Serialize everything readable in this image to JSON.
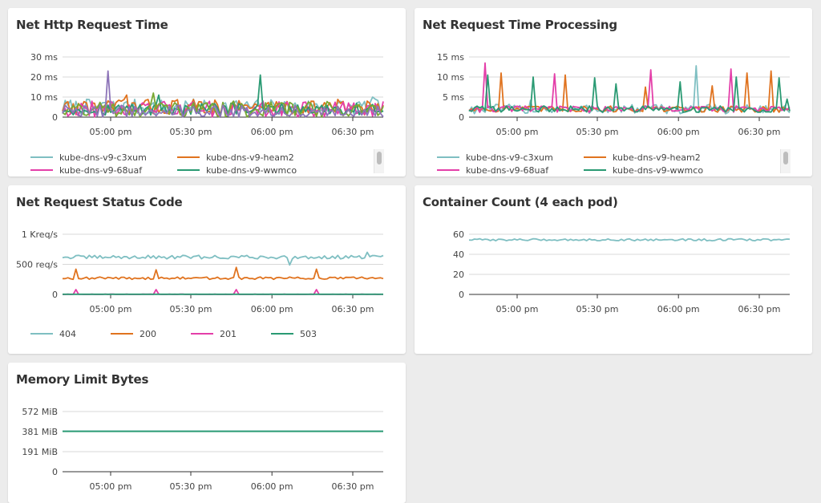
{
  "x_ticks": [
    "05:00 pm",
    "05:30 pm",
    "06:00 pm",
    "06:30 pm"
  ],
  "colors": {
    "teal": "#7fbfc2",
    "orange": "#e0731f",
    "pink": "#e43fa9",
    "green": "#2a9a73",
    "olive": "#79a832",
    "purple": "#8d74b8"
  },
  "panels": {
    "http": {
      "title": "Net Http Request Time",
      "legend": [
        {
          "label": "kube-dns-v9-c3xum",
          "color": "#7fbfc2"
        },
        {
          "label": "kube-dns-v9-heam2",
          "color": "#e0731f"
        },
        {
          "label": "kube-dns-v9-68uaf",
          "color": "#e43fa9"
        },
        {
          "label": "kube-dns-v9-wwmco",
          "color": "#2a9a73"
        }
      ]
    },
    "processing": {
      "title": "Net Request Time Processing",
      "legend": [
        {
          "label": "kube-dns-v9-c3xum",
          "color": "#7fbfc2"
        },
        {
          "label": "kube-dns-v9-heam2",
          "color": "#e0731f"
        },
        {
          "label": "kube-dns-v9-68uaf",
          "color": "#e43fa9"
        },
        {
          "label": "kube-dns-v9-wwmco",
          "color": "#2a9a73"
        }
      ]
    },
    "status": {
      "title": "Net Request Status Code",
      "legend": [
        {
          "label": "404",
          "color": "#7fbfc2"
        },
        {
          "label": "200",
          "color": "#e0731f"
        },
        {
          "label": "201",
          "color": "#e43fa9"
        },
        {
          "label": "503",
          "color": "#2a9a73"
        }
      ]
    },
    "containers": {
      "title": "Container Count (4 each pod)"
    },
    "memory": {
      "title": "Memory Limit Bytes"
    }
  },
  "chart_data": [
    {
      "type": "line",
      "title": "Net Http Request Time",
      "x": [
        "04:45 pm",
        "06:40 pm"
      ],
      "x_ticks": [
        "05:00 pm",
        "05:30 pm",
        "06:00 pm",
        "06:30 pm"
      ],
      "y_ticks": [
        "0",
        "10 ms",
        "20 ms",
        "30 ms"
      ],
      "ylim": [
        0,
        30
      ],
      "grid": true,
      "legend_position": "bottom",
      "series": [
        {
          "name": "kube-dns-v9-c3xum",
          "color": "#7fbfc2",
          "base": 5,
          "jitter": 4,
          "spikes": [
            [
              0.97,
              10
            ]
          ]
        },
        {
          "name": "kube-dns-v9-heam2",
          "color": "#e0731f",
          "base": 5,
          "jitter": 4,
          "spikes": [
            [
              0.2,
              11
            ]
          ]
        },
        {
          "name": "kube-dns-v9-68uaf",
          "color": "#e43fa9",
          "base": 4,
          "jitter": 4,
          "spikes": []
        },
        {
          "name": "kube-dns-v9-wwmco",
          "color": "#2a9a73",
          "base": 4,
          "jitter": 3,
          "spikes": [
            [
              0.62,
              21
            ],
            [
              0.3,
              11
            ]
          ]
        },
        {
          "color": "#79a832",
          "base": 4,
          "jitter": 4,
          "spikes": [
            [
              0.28,
              12
            ]
          ]
        },
        {
          "color": "#8d74b8",
          "base": 3,
          "jitter": 3,
          "spikes": [
            [
              0.14,
              23
            ]
          ]
        }
      ]
    },
    {
      "type": "line",
      "title": "Net Request Time Processing",
      "x": [
        "04:45 pm",
        "06:40 pm"
      ],
      "x_ticks": [
        "05:00 pm",
        "05:30 pm",
        "06:00 pm",
        "06:30 pm"
      ],
      "y_ticks": [
        "0",
        "5 ms",
        "10 ms",
        "15 ms"
      ],
      "ylim": [
        0,
        15
      ],
      "grid": true,
      "legend_position": "bottom",
      "series": [
        {
          "name": "kube-dns-v9-c3xum",
          "color": "#7fbfc2",
          "base": 2,
          "jitter": 1.2,
          "spikes": [
            [
              0.71,
              12.8
            ],
            [
              0.19,
              4.2
            ]
          ]
        },
        {
          "name": "kube-dns-v9-heam2",
          "color": "#e0731f",
          "base": 2,
          "jitter": 0.8,
          "spikes": [
            [
              0.1,
              11
            ],
            [
              0.3,
              10.5
            ],
            [
              0.55,
              7.5
            ],
            [
              0.76,
              7.8
            ],
            [
              0.87,
              11
            ],
            [
              0.94,
              11.5
            ]
          ]
        },
        {
          "name": "kube-dns-v9-68uaf",
          "color": "#e43fa9",
          "base": 2,
          "jitter": 0.8,
          "spikes": [
            [
              0.05,
              13.5
            ],
            [
              0.27,
              10.8
            ],
            [
              0.57,
              11.8
            ],
            [
              0.82,
              12
            ]
          ]
        },
        {
          "name": "kube-dns-v9-wwmco",
          "color": "#2a9a73",
          "base": 2,
          "jitter": 0.8,
          "spikes": [
            [
              0.06,
              10.5
            ],
            [
              0.2,
              10
            ],
            [
              0.39,
              9.8
            ],
            [
              0.46,
              8.3
            ],
            [
              0.66,
              8.8
            ],
            [
              0.83,
              10
            ],
            [
              0.97,
              9.8
            ],
            [
              0.99,
              4.5
            ]
          ]
        }
      ]
    },
    {
      "type": "line",
      "title": "Net Request Status Code",
      "x": [
        "04:45 pm",
        "06:40 pm"
      ],
      "x_ticks": [
        "05:00 pm",
        "05:30 pm",
        "06:00 pm",
        "06:30 pm"
      ],
      "y_ticks": [
        "0",
        "500 req/s",
        "1 Kreq/s"
      ],
      "ylim": [
        0,
        1000
      ],
      "grid": true,
      "legend_position": "bottom",
      "series": [
        {
          "name": "404",
          "color": "#7fbfc2",
          "base": 620,
          "jitter": 30,
          "spikes": [
            [
              0.71,
              490
            ],
            [
              0.95,
              700
            ]
          ]
        },
        {
          "name": "200",
          "color": "#e0731f",
          "base": 270,
          "jitter": 20,
          "spikes": [
            [
              0.04,
              420
            ],
            [
              0.29,
              410
            ],
            [
              0.54,
              450
            ],
            [
              0.79,
              420
            ]
          ]
        },
        {
          "name": "201",
          "color": "#e43fa9",
          "base": 0,
          "jitter": 5,
          "spikes": [
            [
              0.04,
              80
            ],
            [
              0.29,
              80
            ],
            [
              0.54,
              80
            ],
            [
              0.79,
              80
            ]
          ]
        },
        {
          "name": "503",
          "color": "#2a9a73",
          "base": 2,
          "jitter": 0,
          "spikes": []
        }
      ]
    },
    {
      "type": "line",
      "title": "Container Count (4 each pod)",
      "x": [
        "04:45 pm",
        "06:40 pm"
      ],
      "x_ticks": [
        "05:00 pm",
        "05:30 pm",
        "06:00 pm",
        "06:30 pm"
      ],
      "y_ticks": [
        "0",
        "20",
        "40",
        "60"
      ],
      "ylim": [
        0,
        60
      ],
      "grid": true,
      "series": [
        {
          "color": "#7fbfc2",
          "base": 54.5,
          "jitter": 1,
          "spikes": []
        }
      ]
    },
    {
      "type": "line",
      "title": "Memory Limit Bytes",
      "x": [
        "04:45 pm",
        "06:40 pm"
      ],
      "x_ticks": [
        "05:00 pm",
        "05:30 pm",
        "06:00 pm",
        "06:30 pm"
      ],
      "y_ticks": [
        "0",
        "191 MiB",
        "381 MiB",
        "572 MiB"
      ],
      "ylim": [
        0,
        572
      ],
      "grid": true,
      "series": [
        {
          "color": "#7fbfc2",
          "base": 386,
          "jitter": 0,
          "spikes": []
        },
        {
          "color": "#2a9a73",
          "base": 384,
          "jitter": 0,
          "spikes": []
        }
      ]
    }
  ]
}
